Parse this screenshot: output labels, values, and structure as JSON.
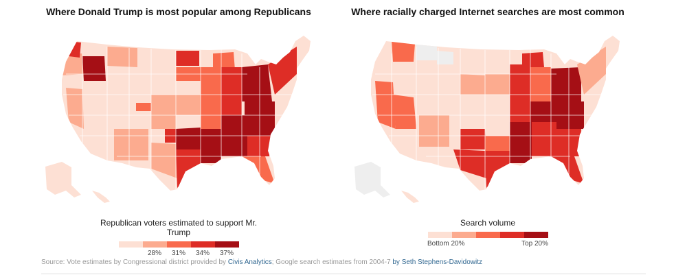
{
  "colors": {
    "scale": [
      "#fde0d4",
      "#fcab8f",
      "#f96a4c",
      "#de2d26",
      "#a50f15"
    ],
    "no_data": "#eeeeee",
    "state_border": "#ffffff",
    "link": "#326891"
  },
  "left_map": {
    "title": "Where Donald Trump is most popular among Republicans",
    "legend_title": "Republican voters estimated to support Mr. Trump",
    "ticks": [
      "28%",
      "31%",
      "34%",
      "37%"
    ],
    "tick_values": [
      0.28,
      0.31,
      0.34,
      0.37
    ]
  },
  "right_map": {
    "title": "Where racially charged Internet searches are most common",
    "legend_title": "Search volume",
    "label_low": "Bottom 20%",
    "label_high": "Top 20%"
  },
  "source": {
    "prefix": "Source: Vote estimates by Congressional district provided by ",
    "link1": "Civis Analytics",
    "middle": "; Google search estimates from 2004-7 ",
    "link2": "by Seth Stephens-Davidowitz"
  }
}
